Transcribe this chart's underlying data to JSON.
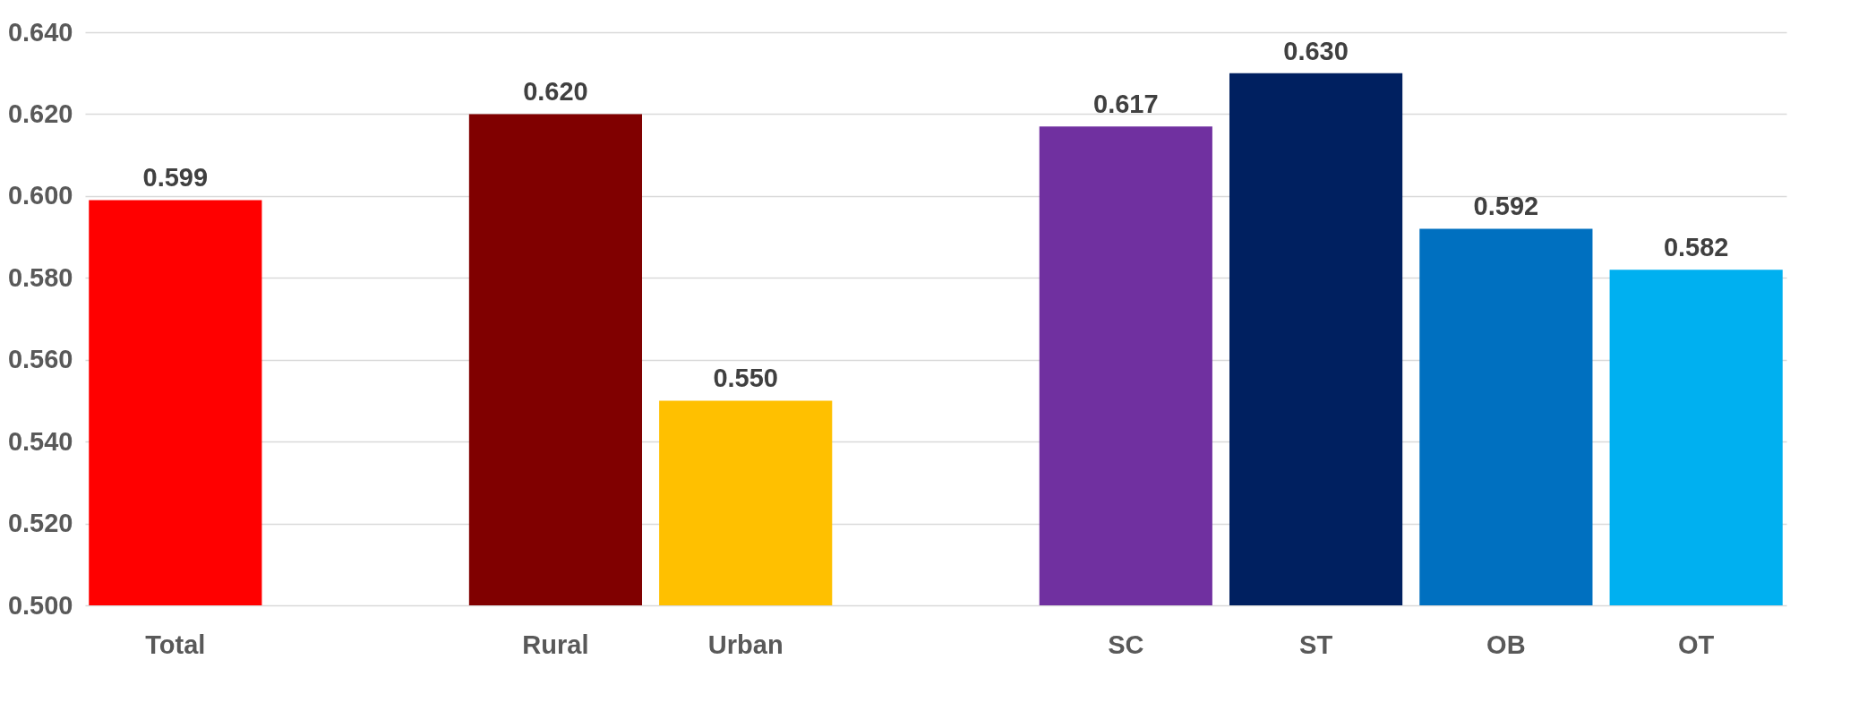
{
  "chart_data": {
    "type": "bar",
    "categories": [
      "Total",
      null,
      "Rural",
      "Urban",
      null,
      "SC",
      "ST",
      "OB",
      "OT"
    ],
    "values": [
      0.599,
      null,
      0.62,
      0.55,
      null,
      0.617,
      0.63,
      0.592,
      0.582
    ],
    "colors": [
      "#ff0000",
      null,
      "#800000",
      "#ffc000",
      null,
      "#7030a0",
      "#002060",
      "#0070c0",
      "#00b0f0"
    ],
    "value_labels": [
      "0.599",
      null,
      "0.620",
      "0.550",
      null,
      "0.617",
      "0.630",
      "0.592",
      "0.582"
    ],
    "ylim": [
      0.5,
      0.64
    ],
    "yticks": [
      {
        "value": 0.5,
        "label": "0.500"
      },
      {
        "value": 0.52,
        "label": "0.520"
      },
      {
        "value": 0.54,
        "label": "0.540"
      },
      {
        "value": 0.56,
        "label": "0.560"
      },
      {
        "value": 0.58,
        "label": "0.580"
      },
      {
        "value": 0.6,
        "label": "0.600"
      },
      {
        "value": 0.62,
        "label": "0.620"
      },
      {
        "value": 0.64,
        "label": "0.640"
      }
    ],
    "grid": "y"
  }
}
